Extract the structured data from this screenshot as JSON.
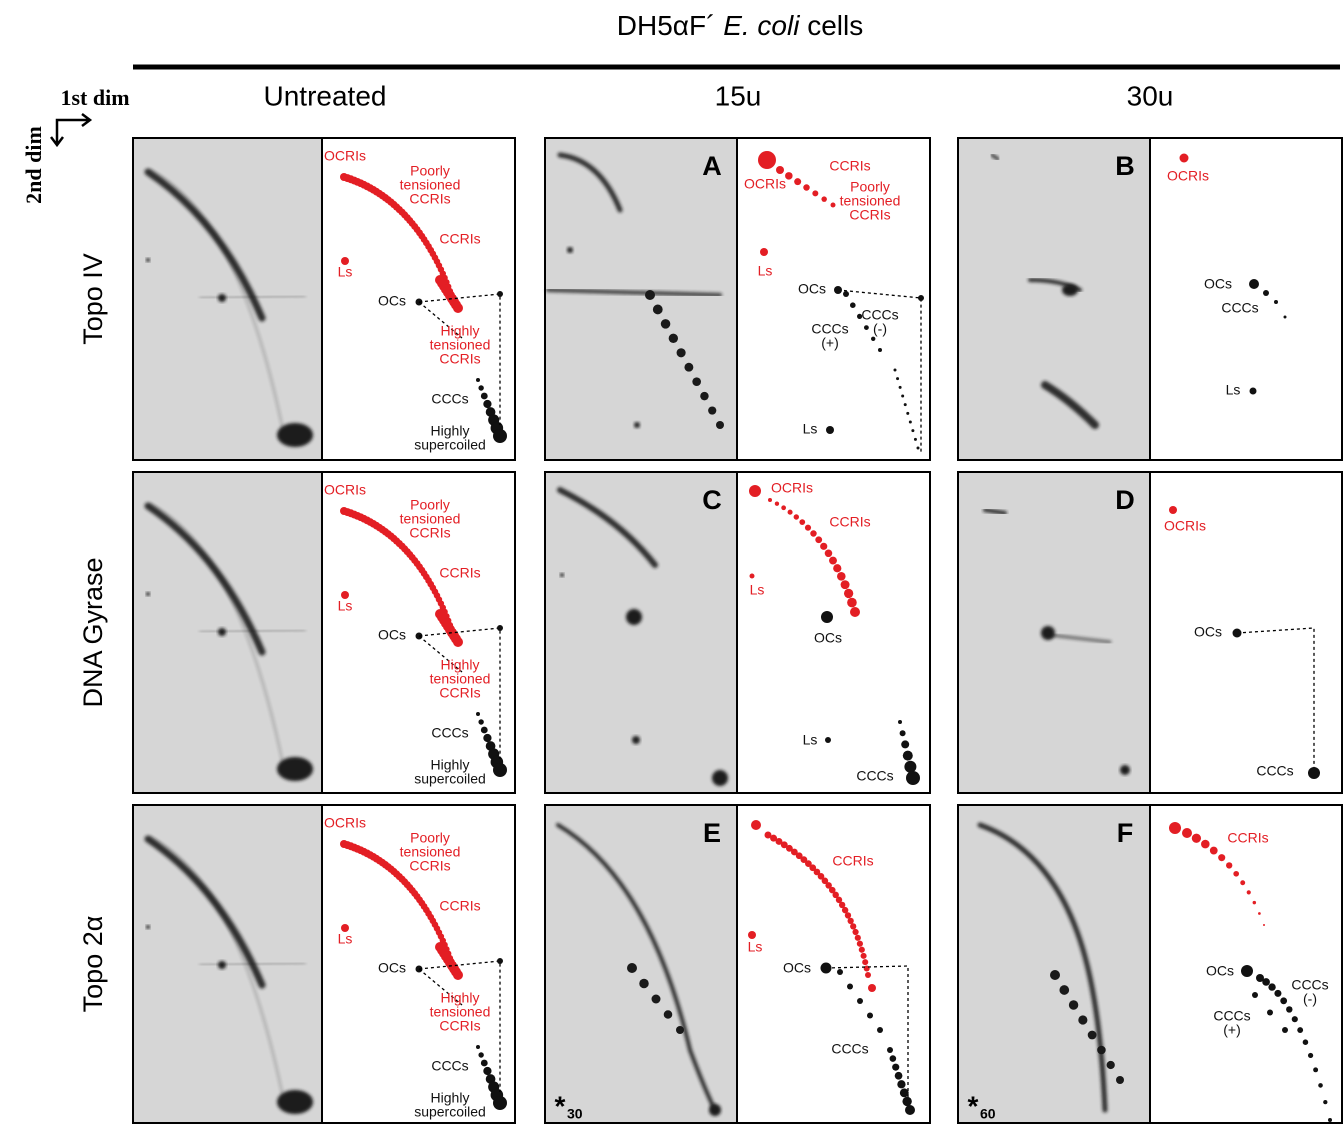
{
  "header": {
    "title_parts": [
      "DH5αF´",
      "E. coli",
      "cells"
    ]
  },
  "axes": {
    "first_dim": "1st dim",
    "second_dim": "2nd dim"
  },
  "columns": [
    "Untreated",
    "15u",
    "30u"
  ],
  "rows": [
    "Topo IV",
    "DNA Gyrase",
    "Topo 2α"
  ],
  "panels": [
    {
      "labels": [
        {
          "lines": [
            "OCRIs"
          ],
          "color": "#e31e24"
        },
        {
          "lines": [
            "Poorly",
            "tensioned",
            "CCRIs"
          ],
          "color": "#e31e24"
        },
        {
          "lines": [
            "CCRIs"
          ],
          "color": "#e31e24"
        },
        {
          "lines": [
            "Ls"
          ],
          "color": "#e31e24"
        },
        {
          "lines": [
            "OCs"
          ],
          "color": "#111111"
        },
        {
          "lines": [
            "Highly",
            "tensioned",
            "CCRIs"
          ],
          "color": "#e31e24"
        },
        {
          "lines": [
            "CCCs"
          ],
          "color": "#111111"
        },
        {
          "lines": [
            "Highly",
            "supercoiled"
          ],
          "color": "#111111"
        }
      ]
    },
    {
      "letter": "A",
      "labels": [
        {
          "lines": [
            "CCRIs"
          ],
          "color": "#e31e24"
        },
        {
          "lines": [
            "OCRIs"
          ],
          "color": "#e31e24"
        },
        {
          "lines": [
            "Poorly",
            "tensioned",
            "CCRIs"
          ],
          "color": "#e31e24"
        },
        {
          "lines": [
            "Ls"
          ],
          "color": "#e31e24"
        },
        {
          "lines": [
            "OCs"
          ],
          "color": "#111111"
        },
        {
          "lines": [
            "CCCs",
            "(-)"
          ],
          "color": "#111111"
        },
        {
          "lines": [
            "CCCs",
            "(+)"
          ],
          "color": "#111111"
        },
        {
          "lines": [
            "Ls"
          ],
          "color": "#111111"
        }
      ]
    },
    {
      "letter": "B",
      "labels": [
        {
          "lines": [
            "OCRIs"
          ],
          "color": "#e31e24"
        },
        {
          "lines": [
            "OCs"
          ],
          "color": "#111111"
        },
        {
          "lines": [
            "CCCs"
          ],
          "color": "#111111"
        },
        {
          "lines": [
            "Ls"
          ],
          "color": "#111111"
        }
      ]
    },
    {
      "labels": [
        {
          "lines": [
            "OCRIs"
          ],
          "color": "#e31e24"
        },
        {
          "lines": [
            "Poorly",
            "tensioned",
            "CCRIs"
          ],
          "color": "#e31e24"
        },
        {
          "lines": [
            "CCRIs"
          ],
          "color": "#e31e24"
        },
        {
          "lines": [
            "Ls"
          ],
          "color": "#e31e24"
        },
        {
          "lines": [
            "OCs"
          ],
          "color": "#111111"
        },
        {
          "lines": [
            "Highly",
            "tensioned",
            "CCRIs"
          ],
          "color": "#e31e24"
        },
        {
          "lines": [
            "CCCs"
          ],
          "color": "#111111"
        },
        {
          "lines": [
            "Highly",
            "supercoiled"
          ],
          "color": "#111111"
        }
      ]
    },
    {
      "letter": "C",
      "labels": [
        {
          "lines": [
            "OCRIs"
          ],
          "color": "#e31e24"
        },
        {
          "lines": [
            "CCRIs"
          ],
          "color": "#e31e24"
        },
        {
          "lines": [
            "Ls"
          ],
          "color": "#e31e24"
        },
        {
          "lines": [
            "OCs"
          ],
          "color": "#111111"
        },
        {
          "lines": [
            "Ls"
          ],
          "color": "#111111"
        },
        {
          "lines": [
            "CCCs"
          ],
          "color": "#111111"
        }
      ]
    },
    {
      "letter": "D",
      "labels": [
        {
          "lines": [
            "OCRIs"
          ],
          "color": "#e31e24"
        },
        {
          "lines": [
            "OCs"
          ],
          "color": "#111111"
        },
        {
          "lines": [
            "CCCs"
          ],
          "color": "#111111"
        }
      ]
    },
    {
      "labels": [
        {
          "lines": [
            "OCRIs"
          ],
          "color": "#e31e24"
        },
        {
          "lines": [
            "Poorly",
            "tensioned",
            "CCRIs"
          ],
          "color": "#e31e24"
        },
        {
          "lines": [
            "CCRIs"
          ],
          "color": "#e31e24"
        },
        {
          "lines": [
            "Ls"
          ],
          "color": "#e31e24"
        },
        {
          "lines": [
            "OCs"
          ],
          "color": "#111111"
        },
        {
          "lines": [
            "Highly",
            "tensioned",
            "CCRIs"
          ],
          "color": "#e31e24"
        },
        {
          "lines": [
            "CCCs"
          ],
          "color": "#111111"
        },
        {
          "lines": [
            "Highly",
            "supercoiled"
          ],
          "color": "#111111"
        }
      ]
    },
    {
      "letter": "E",
      "marker": {
        "symbol": "*",
        "subscript": "30"
      },
      "labels": [
        {
          "lines": [
            "CCRIs"
          ],
          "color": "#e31e24"
        },
        {
          "lines": [
            "Ls"
          ],
          "color": "#e31e24"
        },
        {
          "lines": [
            "OCs"
          ],
          "color": "#111111"
        },
        {
          "lines": [
            "CCCs"
          ],
          "color": "#111111"
        }
      ]
    },
    {
      "letter": "F",
      "marker": {
        "symbol": "*",
        "subscript": "60"
      },
      "labels": [
        {
          "lines": [
            "CCRIs"
          ],
          "color": "#e31e24"
        },
        {
          "lines": [
            "OCs"
          ],
          "color": "#111111"
        },
        {
          "lines": [
            "CCCs",
            "(-)"
          ],
          "color": "#111111"
        },
        {
          "lines": [
            "CCCs",
            "(+)"
          ],
          "color": "#111111"
        }
      ]
    }
  ]
}
